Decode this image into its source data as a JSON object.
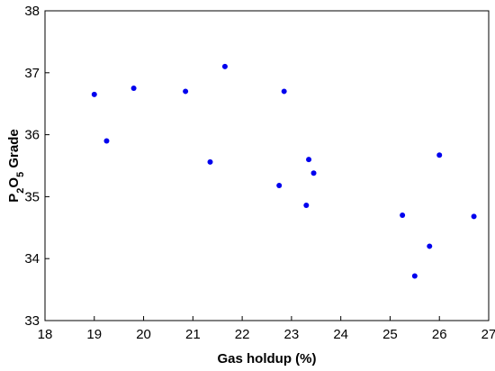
{
  "chart_data": {
    "type": "scatter",
    "xlabel": "Gas holdup (%)",
    "ylabel": {
      "base1": "P",
      "sub1": "2",
      "base2": "O",
      "sub2": "5",
      "rest": " Grade"
    },
    "xlim": [
      18,
      27
    ],
    "ylim": [
      33,
      38
    ],
    "x_ticks": [
      18,
      19,
      20,
      21,
      22,
      23,
      24,
      25,
      26,
      27
    ],
    "y_ticks": [
      33,
      34,
      35,
      36,
      37,
      38
    ],
    "grid": false,
    "marker_color": "#0000ee",
    "points": [
      {
        "x": 19.0,
        "y": 36.65
      },
      {
        "x": 19.25,
        "y": 35.9
      },
      {
        "x": 19.8,
        "y": 36.75
      },
      {
        "x": 20.85,
        "y": 36.7
      },
      {
        "x": 21.35,
        "y": 35.56
      },
      {
        "x": 21.65,
        "y": 37.1
      },
      {
        "x": 22.75,
        "y": 35.18
      },
      {
        "x": 22.85,
        "y": 36.7
      },
      {
        "x": 23.3,
        "y": 34.86
      },
      {
        "x": 23.35,
        "y": 35.6
      },
      {
        "x": 23.45,
        "y": 35.38
      },
      {
        "x": 25.25,
        "y": 34.7
      },
      {
        "x": 25.5,
        "y": 33.72
      },
      {
        "x": 25.8,
        "y": 34.2
      },
      {
        "x": 26.0,
        "y": 35.67
      },
      {
        "x": 26.7,
        "y": 34.68
      }
    ]
  }
}
